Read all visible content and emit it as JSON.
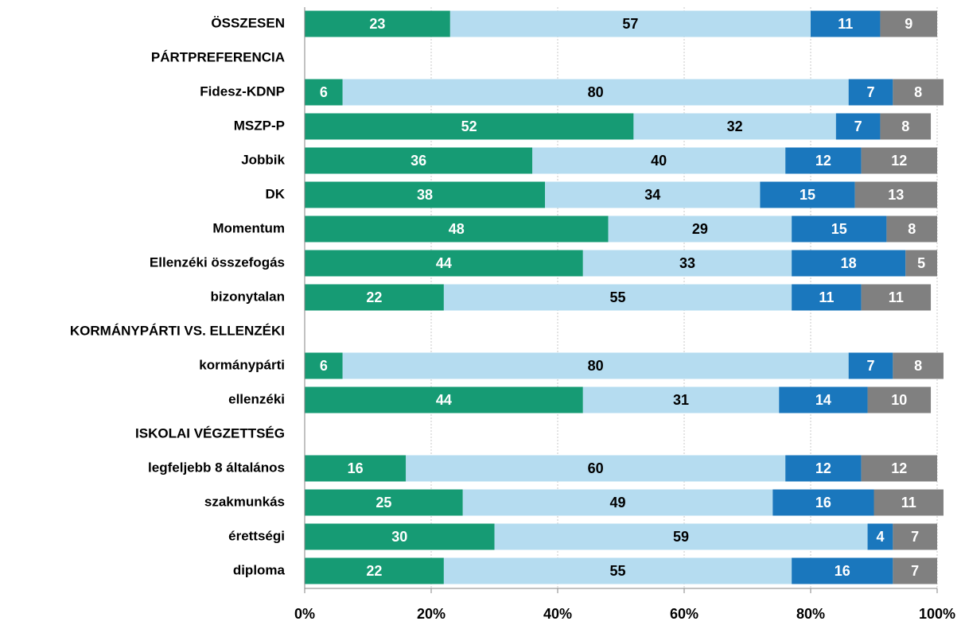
{
  "chart_data": {
    "type": "stacked-bar-horizontal",
    "categories": [
      "ÖSSZESEN",
      "PÁRTPREFERENCIA",
      "Fidesz-KDNP",
      "MSZP-P",
      "Jobbik",
      "DK",
      "Momentum",
      "Ellenzéki összefogás",
      "bizonytalan",
      "KORMÁNYPÁRTI VS. ELLENZÉKI",
      "kormánypárti",
      "ellenzéki",
      "ISKOLAI VÉGZETTSÉG",
      "legfeljebb 8 általános",
      "szakmunkás",
      "érettségi",
      "diploma"
    ],
    "series": [
      {
        "color": "#169b74",
        "values": [
          23,
          null,
          6,
          52,
          36,
          38,
          48,
          44,
          22,
          null,
          6,
          44,
          null,
          16,
          25,
          30,
          22
        ]
      },
      {
        "color": "#b5dcf0",
        "values": [
          57,
          null,
          80,
          32,
          40,
          34,
          29,
          33,
          55,
          null,
          80,
          31,
          null,
          60,
          49,
          59,
          55
        ]
      },
      {
        "color": "#1a77bd",
        "values": [
          11,
          null,
          7,
          7,
          12,
          15,
          15,
          18,
          11,
          null,
          7,
          14,
          null,
          12,
          16,
          4,
          16
        ]
      },
      {
        "color": "#808080",
        "values": [
          9,
          null,
          8,
          8,
          12,
          13,
          8,
          5,
          11,
          null,
          8,
          10,
          null,
          12,
          11,
          7,
          7
        ]
      }
    ],
    "xlim": [
      0,
      100
    ],
    "xticks": [
      {
        "value": 0,
        "label": "0%"
      },
      {
        "value": 20,
        "label": "20%"
      },
      {
        "value": 40,
        "label": "40%"
      },
      {
        "value": 60,
        "label": "60%"
      },
      {
        "value": 80,
        "label": "80%"
      },
      {
        "value": 100,
        "label": "100%"
      }
    ],
    "grid": true
  }
}
